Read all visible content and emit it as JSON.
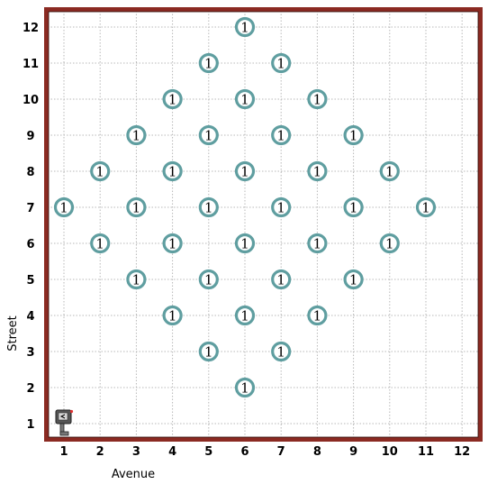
{
  "axes": {
    "x_title": "Avenue",
    "y_title": "Street",
    "avenue_labels": [
      "1",
      "2",
      "3",
      "4",
      "5",
      "6",
      "7",
      "8",
      "9",
      "10",
      "11",
      "12"
    ],
    "street_labels": [
      "1",
      "2",
      "3",
      "4",
      "5",
      "6",
      "7",
      "8",
      "9",
      "10",
      "11",
      "12"
    ]
  },
  "colors": {
    "wall": "#8b2a22",
    "grid": "#b8b8b8",
    "beeper_ring": "#5f9ea0",
    "robot_body": "#555555",
    "robot_accent": "#e03030"
  },
  "robot": {
    "avenue": 1,
    "street": 1,
    "facing": "west",
    "icon": "karel-robot-icon"
  },
  "beepers": [
    {
      "avenue": 6,
      "street": 12,
      "count": "1"
    },
    {
      "avenue": 5,
      "street": 11,
      "count": "1"
    },
    {
      "avenue": 7,
      "street": 11,
      "count": "1"
    },
    {
      "avenue": 4,
      "street": 10,
      "count": "1"
    },
    {
      "avenue": 6,
      "street": 10,
      "count": "1"
    },
    {
      "avenue": 8,
      "street": 10,
      "count": "1"
    },
    {
      "avenue": 3,
      "street": 9,
      "count": "1"
    },
    {
      "avenue": 5,
      "street": 9,
      "count": "1"
    },
    {
      "avenue": 7,
      "street": 9,
      "count": "1"
    },
    {
      "avenue": 9,
      "street": 9,
      "count": "1"
    },
    {
      "avenue": 2,
      "street": 8,
      "count": "1"
    },
    {
      "avenue": 4,
      "street": 8,
      "count": "1"
    },
    {
      "avenue": 6,
      "street": 8,
      "count": "1"
    },
    {
      "avenue": 8,
      "street": 8,
      "count": "1"
    },
    {
      "avenue": 10,
      "street": 8,
      "count": "1"
    },
    {
      "avenue": 1,
      "street": 7,
      "count": "1"
    },
    {
      "avenue": 3,
      "street": 7,
      "count": "1"
    },
    {
      "avenue": 5,
      "street": 7,
      "count": "1"
    },
    {
      "avenue": 7,
      "street": 7,
      "count": "1"
    },
    {
      "avenue": 9,
      "street": 7,
      "count": "1"
    },
    {
      "avenue": 11,
      "street": 7,
      "count": "1"
    },
    {
      "avenue": 2,
      "street": 6,
      "count": "1"
    },
    {
      "avenue": 4,
      "street": 6,
      "count": "1"
    },
    {
      "avenue": 6,
      "street": 6,
      "count": "1"
    },
    {
      "avenue": 8,
      "street": 6,
      "count": "1"
    },
    {
      "avenue": 10,
      "street": 6,
      "count": "1"
    },
    {
      "avenue": 3,
      "street": 5,
      "count": "1"
    },
    {
      "avenue": 5,
      "street": 5,
      "count": "1"
    },
    {
      "avenue": 7,
      "street": 5,
      "count": "1"
    },
    {
      "avenue": 9,
      "street": 5,
      "count": "1"
    },
    {
      "avenue": 4,
      "street": 4,
      "count": "1"
    },
    {
      "avenue": 6,
      "street": 4,
      "count": "1"
    },
    {
      "avenue": 8,
      "street": 4,
      "count": "1"
    },
    {
      "avenue": 5,
      "street": 3,
      "count": "1"
    },
    {
      "avenue": 7,
      "street": 3,
      "count": "1"
    },
    {
      "avenue": 6,
      "street": 2,
      "count": "1"
    }
  ]
}
